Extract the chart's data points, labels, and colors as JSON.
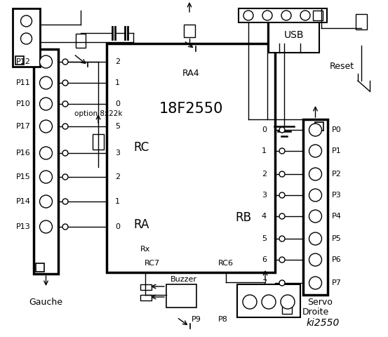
{
  "bg_color": "#ffffff",
  "title": "ki2550",
  "chip_label": "18F2550",
  "left_labels": [
    "P12",
    "P11",
    "P10",
    "P17",
    "P16",
    "P15",
    "P14",
    "P13"
  ],
  "right_labels": [
    "P0",
    "P1",
    "P2",
    "P3",
    "P4",
    "P5",
    "P6",
    "P7"
  ],
  "rc_pins": [
    "2",
    "1",
    "0",
    "5",
    "3",
    "2",
    "1",
    "0"
  ],
  "rb_pins": [
    "0",
    "1",
    "2",
    "3",
    "4",
    "5",
    "6",
    "7"
  ],
  "gauche_label": "Gauche",
  "droite_label": "Droite",
  "usb_label": "USB",
  "reset_label": "Reset",
  "servo_label": "Servo",
  "buzzer_label": "Buzzer",
  "p8_label": "P8",
  "p9_label": "P9",
  "ra4_label": "RA4",
  "rc_label": "RC",
  "ra_label": "RA",
  "rb_label": "RB",
  "rx_label": "Rx",
  "rc7_label": "RC7",
  "rc6_label": "RC6",
  "option_label": "option 8x22k"
}
